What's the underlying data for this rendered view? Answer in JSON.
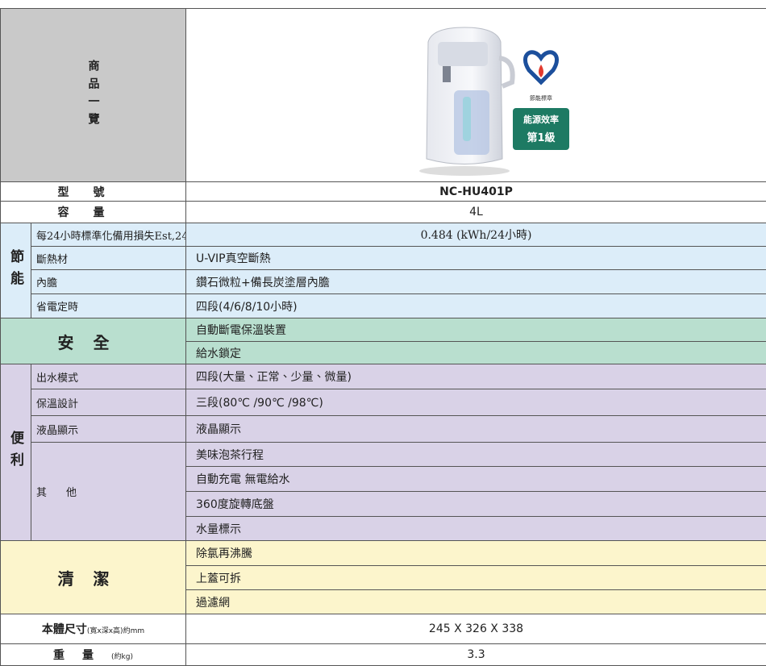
{
  "header": {
    "label": "商品一覽",
    "energy_badge": {
      "mark": "節能標章",
      "line1": "能源效率",
      "line2": "第1級"
    }
  },
  "table": {
    "model": {
      "label": "型號",
      "value": "NC-HU401P"
    },
    "capacity": {
      "label": "容量",
      "value": "4L"
    },
    "groups": [
      {
        "label": "節能",
        "items": [
          {
            "label": "每24小時標準化備用損失Est,24",
            "values": [
              "0.484 (kWh/24小時)"
            ]
          },
          {
            "label": "斷熱材",
            "values": [
              "U-VIP真空斷熱"
            ]
          },
          {
            "label": "內膽",
            "values": [
              "鑽石微粒+備長炭塗層內膽"
            ]
          },
          {
            "label": "省電定時",
            "values": [
              "四段(4/6/8/10小時)"
            ]
          }
        ]
      },
      {
        "label": "安全",
        "values": [
          "自動斷電保溫裝置",
          "給水鎖定"
        ]
      },
      {
        "label": "便利",
        "items": [
          {
            "label": "出水模式",
            "values": [
              "四段(大量、正常、少量、微量)"
            ]
          },
          {
            "label": "保溫設計",
            "values": [
              "三段(80℃ /90℃ /98℃)"
            ]
          },
          {
            "label": "液晶顯示",
            "values": [
              "液晶顯示"
            ]
          },
          {
            "label": "其他",
            "values": [
              "美味泡茶行程",
              "自動充電 無電給水",
              "360度旋轉底盤",
              "水量標示"
            ]
          }
        ]
      },
      {
        "label": "清潔",
        "values": [
          "除氯再沸騰",
          "上蓋可拆",
          "過濾網"
        ]
      }
    ],
    "size": {
      "label": "本體尺寸",
      "note": "(寬x深x高)約mm",
      "value": "245 X 326 X 338"
    },
    "weight": {
      "label": "重量",
      "note": "(約kg)",
      "value": "3.3"
    }
  }
}
